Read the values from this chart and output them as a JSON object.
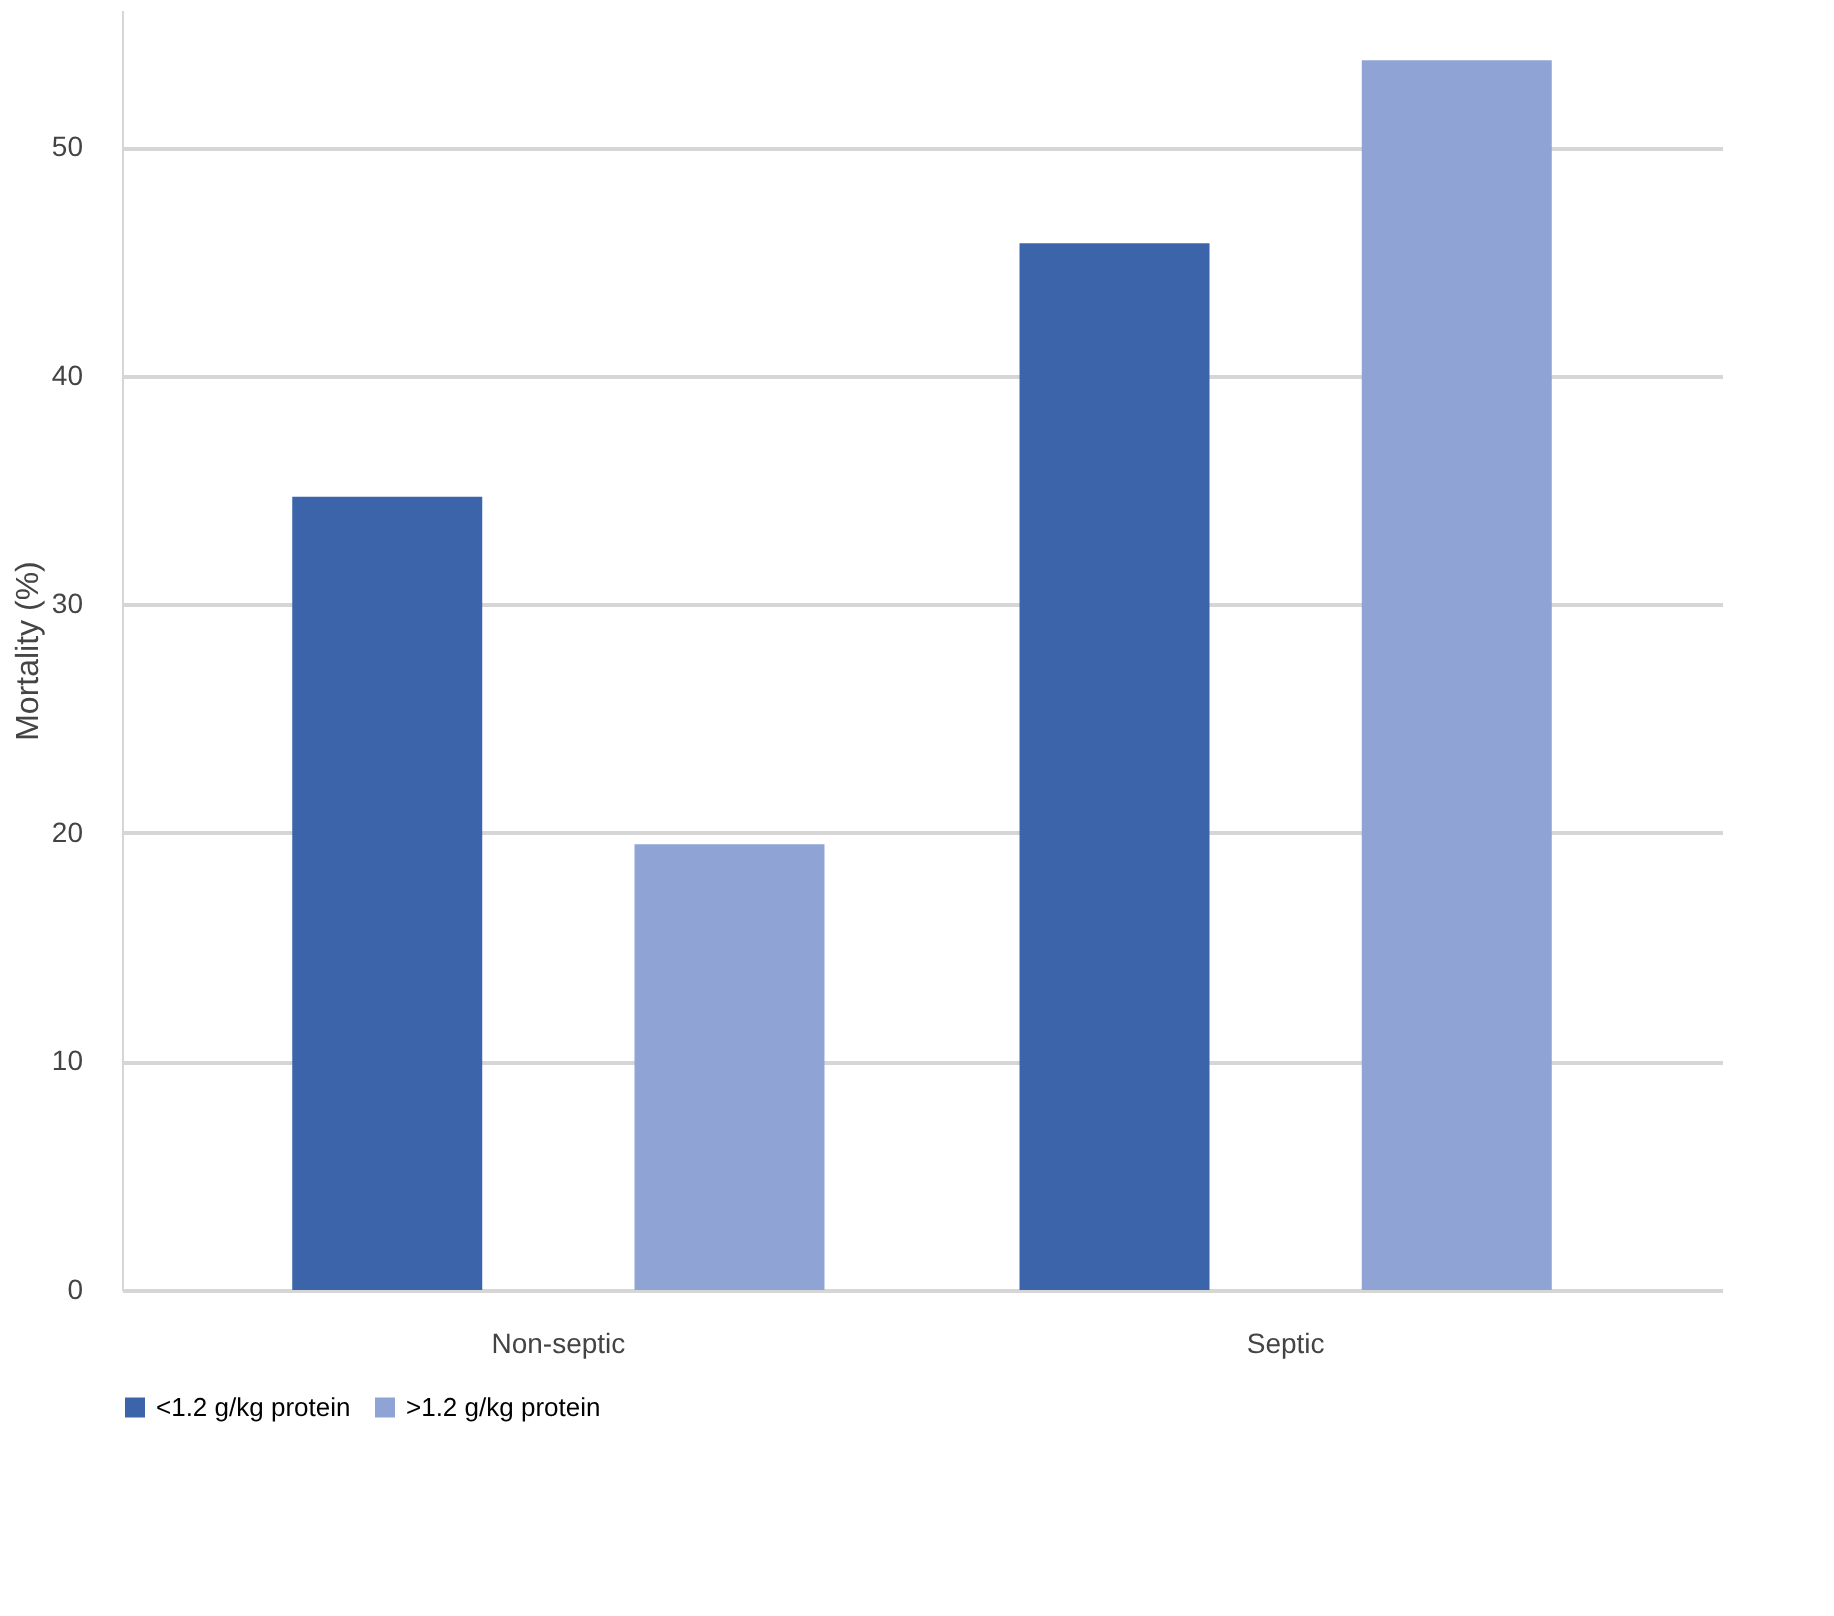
{
  "chart_data": {
    "type": "bar",
    "ylabel": "Mortality (%)",
    "categories": [
      "Non-septic",
      "Septic"
    ],
    "series": [
      {
        "name": "<1.2 g/kg protein",
        "color": "#3c64ab",
        "values": [
          34.7,
          45.8
        ]
      },
      {
        "name": ">1.2 g/kg protein",
        "color": "#8fa3d4",
        "values": [
          19.5,
          53.8
        ]
      }
    ],
    "ylim": [
      0,
      56
    ],
    "yticks": [
      0,
      10,
      20,
      30,
      40,
      50
    ],
    "grid": "y",
    "legend": "bottom"
  }
}
